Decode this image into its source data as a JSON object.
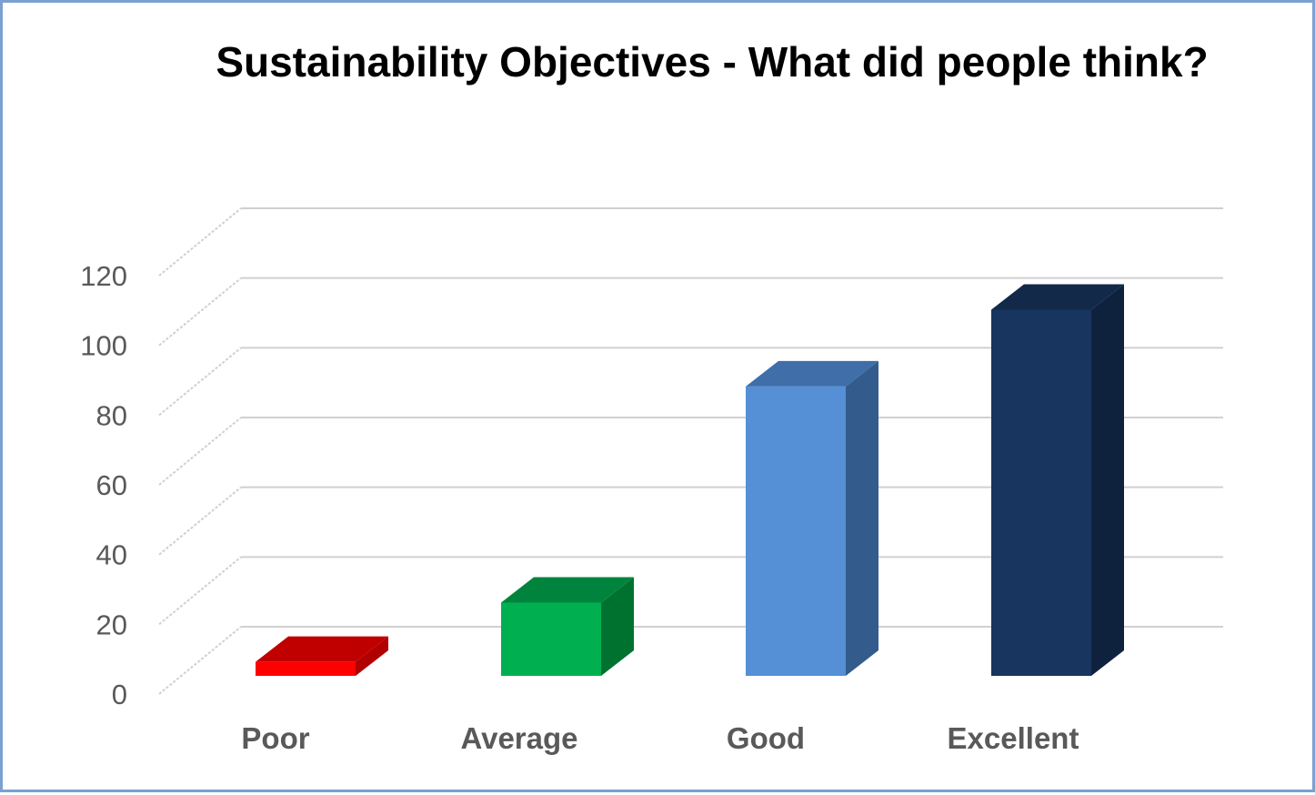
{
  "chart_data": {
    "type": "bar",
    "title": "Sustainability Objectives - What did people think?",
    "categories": [
      "Poor",
      "Average",
      "Good",
      "Excellent"
    ],
    "values": [
      4,
      21,
      83,
      105
    ],
    "colors": {
      "front": [
        "#ff0000",
        "#00b050",
        "#5590d6",
        "#17355e"
      ],
      "top": [
        "#c00000",
        "#00843d",
        "#3f6ea8",
        "#12294a"
      ],
      "side": [
        "#b00000",
        "#00722f",
        "#335c8c",
        "#0f223d"
      ]
    },
    "ylim": [
      0,
      120
    ],
    "yticks": [
      "0",
      "20",
      "40",
      "60",
      "80",
      "100",
      "120"
    ],
    "grid": true,
    "style": "3d-column"
  }
}
